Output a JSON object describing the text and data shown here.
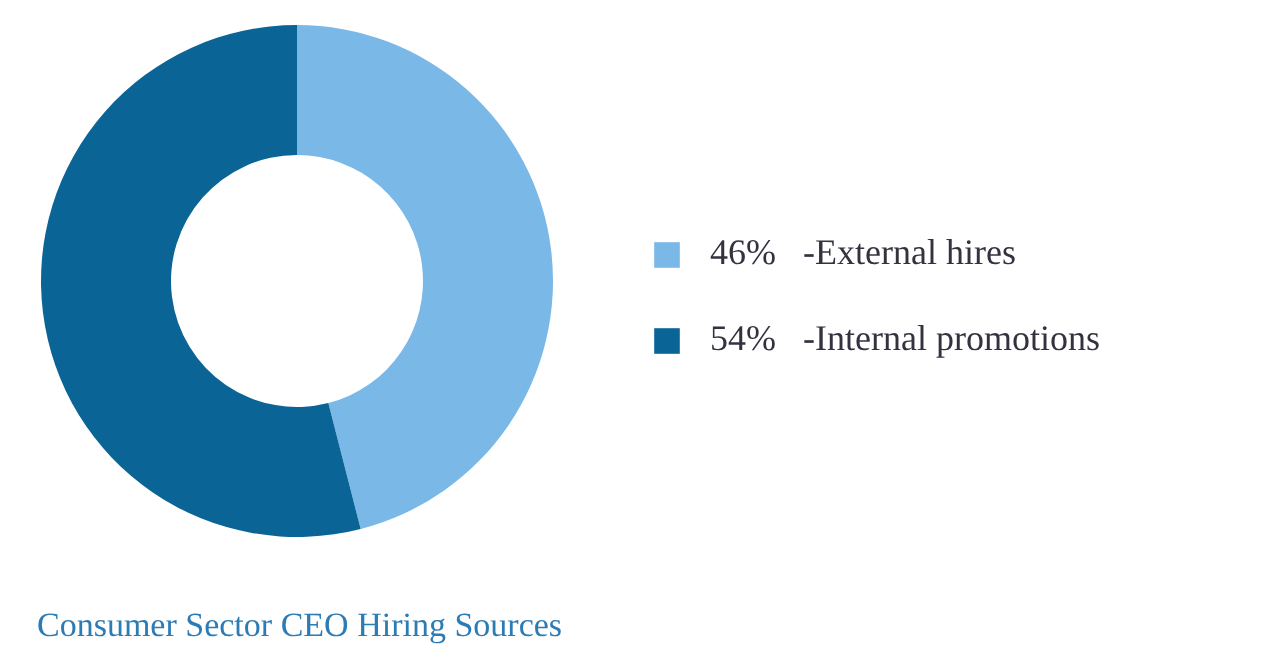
{
  "chart_data": {
    "type": "donut",
    "title": "Consumer Sector CEO Hiring Sources",
    "categories": [
      "-External hires",
      "-Internal promotions"
    ],
    "values": [
      46,
      54
    ],
    "value_labels": [
      "46%",
      "54%"
    ],
    "colors": [
      "#7ab8e8",
      "#0b6496"
    ],
    "legend": "right"
  }
}
